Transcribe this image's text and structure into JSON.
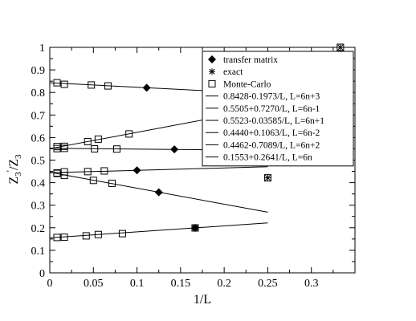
{
  "chart_data": {
    "type": "scatter",
    "xlabel": "1/L",
    "ylabel": "Z3'/Z3",
    "xlim": [
      0,
      0.35
    ],
    "ylim": [
      0,
      1
    ],
    "x_ticks": [
      "0",
      "0.05",
      "0.1",
      "0.15",
      "0.2",
      "0.25",
      "0.3"
    ],
    "y_ticks": [
      "0",
      "0.1",
      "0.2",
      "0.3",
      "0.4",
      "0.5",
      "0.6",
      "0.7",
      "0.8",
      "0.9",
      "1"
    ],
    "grid": false,
    "legend_position": "top-right",
    "markers": [
      {
        "name": "transfer matrix",
        "symbol": "diamond",
        "points": [
          [
            0.1111,
            0.8209
          ],
          [
            0.1429,
            0.5474
          ],
          [
            0.1,
            0.4547
          ],
          [
            0.125,
            0.3573
          ],
          [
            0.1667,
            0.1993
          ]
        ]
      },
      {
        "name": "exact",
        "symbol": "asterisk",
        "points": [
          [
            0.3333,
            1.0
          ],
          [
            0.25,
            0.4213
          ],
          [
            0.1667,
            0.1993
          ]
        ]
      },
      {
        "name": "Monte-Carlo",
        "symbol": "square",
        "points": [
          [
            0.0083,
            0.843
          ],
          [
            0.0167,
            0.836
          ],
          [
            0.0476,
            0.833
          ],
          [
            0.0667,
            0.829
          ],
          [
            0.0083,
            0.56
          ],
          [
            0.0167,
            0.561
          ],
          [
            0.0435,
            0.582
          ],
          [
            0.0556,
            0.593
          ],
          [
            0.0909,
            0.616
          ],
          [
            0.0083,
            0.551
          ],
          [
            0.0167,
            0.552
          ],
          [
            0.0513,
            0.55
          ],
          [
            0.0769,
            0.549
          ],
          [
            0.0083,
            0.441
          ],
          [
            0.0167,
            0.448
          ],
          [
            0.0435,
            0.449
          ],
          [
            0.0625,
            0.452
          ],
          [
            0.0083,
            0.443
          ],
          [
            0.0167,
            0.432
          ],
          [
            0.05,
            0.41
          ],
          [
            0.0714,
            0.397
          ],
          [
            0.0083,
            0.157
          ],
          [
            0.0167,
            0.158
          ],
          [
            0.0417,
            0.164
          ],
          [
            0.0556,
            0.17
          ],
          [
            0.0833,
            0.174
          ]
        ]
      }
    ],
    "lines": [
      {
        "name": "0.8428-0.1973/L, L=6n+3",
        "intercept": 0.8428,
        "slope": -0.1973,
        "x_range": [
          0,
          0.25
        ]
      },
      {
        "name": "0.5505+0.7270/L, L=6n-1",
        "intercept": 0.5505,
        "slope": 0.727,
        "x_range": [
          0,
          0.25
        ]
      },
      {
        "name": "0.5523-0.03585/L, L=6n+1",
        "intercept": 0.5523,
        "slope": -0.03585,
        "x_range": [
          0,
          0.25
        ]
      },
      {
        "name": "0.4440+0.1063/L, L=6n-2",
        "intercept": 0.444,
        "slope": 0.1063,
        "x_range": [
          0,
          0.25
        ]
      },
      {
        "name": "0.4462-0.7089/L, L=6n+2",
        "intercept": 0.4462,
        "slope": -0.7089,
        "x_range": [
          0,
          0.25
        ]
      },
      {
        "name": "0.1553+0.2641/L, L=6n",
        "intercept": 0.1553,
        "slope": 0.2641,
        "x_range": [
          0,
          0.25
        ]
      }
    ]
  }
}
